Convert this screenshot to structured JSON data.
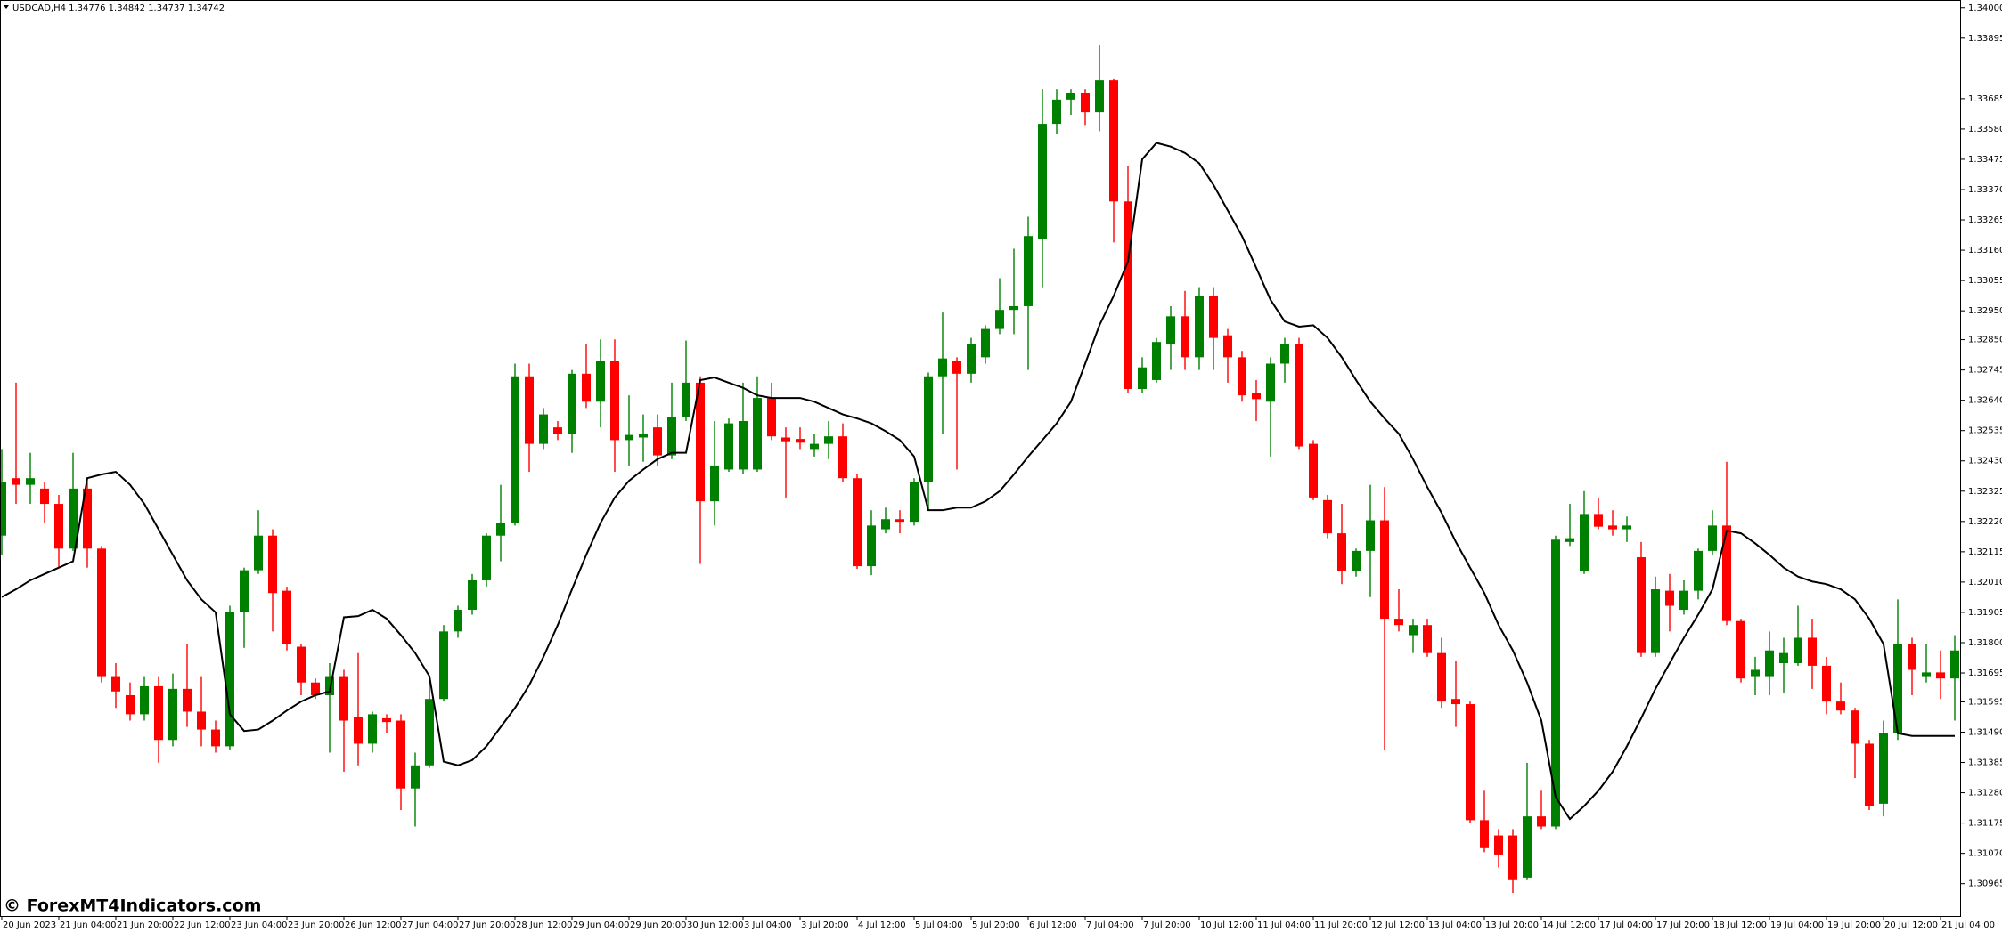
{
  "chart_data": {
    "type": "candlestick",
    "title": "USDCAD,H4 1.34776 1.34842 1.34737 1.34742",
    "watermark": "© ForexMT4Indicators.com",
    "up_color": "#008000",
    "down_color": "#ff0000",
    "categories": [
      "20 Jun 2023",
      null,
      null,
      null,
      "21 Jun 04:00",
      null,
      null,
      null,
      "21 Jun 20:00",
      null,
      null,
      null,
      "22 Jun 12:00",
      null,
      null,
      null,
      "23 Jun 04:00",
      null,
      null,
      null,
      "23 Jun 20:00",
      null,
      null,
      null,
      "26 Jun 12:00",
      null,
      null,
      null,
      "27 Jun 04:00",
      null,
      null,
      null,
      "27 Jun 20:00",
      null,
      null,
      null,
      "28 Jun 12:00",
      null,
      null,
      null,
      "29 Jun 04:00",
      null,
      null,
      null,
      "29 Jun 20:00",
      null,
      null,
      null,
      "30 Jun 12:00",
      null,
      null,
      null,
      "3 Jul 04:00",
      null,
      null,
      null,
      "3 Jul 20:00",
      null,
      null,
      null,
      "4 Jul 12:00",
      null,
      null,
      null,
      "5 Jul 04:00",
      null,
      null,
      null,
      "5 Jul 20:00",
      null,
      null,
      null,
      "6 Jul 12:00",
      null,
      null,
      null,
      "7 Jul 04:00",
      null,
      null,
      null,
      "7 Jul 20:00",
      null,
      null,
      null,
      "10 Jul 12:00",
      null,
      null,
      null,
      "11 Jul 04:00",
      null,
      null,
      null,
      "11 Jul 20:00",
      null,
      null,
      null,
      "12 Jul 12:00",
      null,
      null,
      null,
      "13 Jul 04:00",
      null,
      null,
      null,
      "13 Jul 20:00",
      null,
      null,
      null,
      "14 Jul 12:00",
      null,
      null,
      null,
      "17 Jul 04:00",
      null,
      null,
      null,
      "17 Jul 20:00",
      null,
      null,
      null,
      "18 Jul 12:00",
      null,
      null,
      null,
      "19 Jul 04:00",
      null,
      null,
      null,
      "19 Jul 20:00",
      null,
      null,
      null,
      "20 Jul 12:00",
      null,
      null,
      null,
      "21 Jul 04:00",
      null
    ],
    "open": [
      1.32171,
      1.3237,
      1.32347,
      1.32334,
      1.32281,
      1.32126,
      1.32334,
      1.32126,
      1.31684,
      1.31618,
      1.31552,
      1.31649,
      1.31463,
      1.3164,
      1.31561,
      1.31499,
      1.31441,
      1.31905,
      1.32051,
      1.32171,
      1.3198,
      1.31786,
      1.31662,
      1.31618,
      1.31684,
      1.31543,
      1.3145,
      1.31538,
      1.3153,
      1.31295,
      1.31375,
      1.31605,
      1.31839,
      1.31914,
      1.32016,
      1.32171,
      1.32215,
      1.32723,
      1.32489,
      1.32546,
      1.32524,
      1.32732,
      1.32635,
      1.32776,
      1.32502,
      1.32511,
      1.32546,
      1.32449,
      1.32582,
      1.32701,
      1.3229,
      1.324,
      1.324,
      1.324,
      1.32648,
      1.32511,
      1.32506,
      1.32471,
      1.32489,
      1.32515,
      1.3237,
      1.32065,
      1.32193,
      1.32228,
      1.32219,
      1.32356,
      1.32723,
      1.32776,
      1.32732,
      1.32789,
      1.32887,
      1.32953,
      1.32966,
      1.332,
      1.33598,
      1.33682,
      1.33704,
      1.33638,
      1.33749,
      1.33329,
      1.32679,
      1.3271,
      1.32834,
      1.32931,
      1.32789,
      1.33002,
      1.32865,
      1.32789,
      1.32666,
      1.32635,
      1.32767,
      1.32834,
      1.32489,
      1.32294,
      1.32179,
      1.32047,
      1.32118,
      1.32224,
      1.31883,
      1.31826,
      1.31861,
      1.31764,
      1.31605,
      1.31587,
      1.31185,
      1.31132,
      1.31132,
      1.30986,
      1.31198,
      1.31163,
      1.32149,
      1.32047,
      1.32246,
      1.32206,
      1.32193,
      1.32096,
      1.31764,
      1.3198,
      1.31914,
      1.3198,
      1.32118,
      1.32206,
      1.31875,
      1.31684,
      1.31684,
      1.31729,
      1.31729,
      1.31817,
      1.3172,
      1.31596,
      1.31565,
      1.3145,
      1.31242,
      1.31486,
      1.31795,
      1.31684,
      1.31697,
      1.31676
    ],
    "high": [
      1.32471,
      1.32701,
      1.32458,
      1.32356,
      1.32312,
      1.32458,
      1.32356,
      1.32135,
      1.31729,
      1.31662,
      1.31684,
      1.31684,
      1.31693,
      1.31795,
      1.31684,
      1.3153,
      1.31928,
      1.3206,
      1.32259,
      1.32193,
      1.31994,
      1.31795,
      1.31676,
      1.31729,
      1.31706,
      1.31764,
      1.31561,
      1.31552,
      1.31552,
      1.31419,
      1.31684,
      1.31861,
      1.31928,
      1.32038,
      1.32179,
      1.32347,
      1.32767,
      1.32767,
      1.32613,
      1.32568,
      1.32745,
      1.32834,
      1.32851,
      1.32851,
      1.32657,
      1.32591,
      1.32591,
      1.32701,
      1.32847,
      1.32723,
      1.32568,
      1.32577,
      1.32701,
      1.32723,
      1.32701,
      1.32546,
      1.32546,
      1.32524,
      1.32568,
      1.3256,
      1.32383,
      1.32259,
      1.32268,
      1.32259,
      1.3237,
      1.32736,
      1.32944,
      1.32789,
      1.32856,
      1.329,
      1.33063,
      1.33165,
      1.33276,
      1.33718,
      1.33718,
      1.33718,
      1.33718,
      1.33872,
      1.33753,
      1.33452,
      1.32789,
      1.32856,
      1.32966,
      1.33019,
      1.33032,
      1.33032,
      1.32887,
      1.32811,
      1.3271,
      1.32789,
      1.32856,
      1.32856,
      1.32502,
      1.32312,
      1.32281,
      1.32126,
      1.32347,
      1.32339,
      1.31985,
      1.31883,
      1.31883,
      1.31817,
      1.31737,
      1.31596,
      1.31287,
      1.31154,
      1.31154,
      1.31384,
      1.31287,
      1.32171,
      1.32281,
      1.32325,
      1.32303,
      1.32259,
      1.32237,
      1.32149,
      1.32029,
      1.32038,
      1.32016,
      1.32126,
      1.32259,
      1.32427,
      1.31883,
      1.31751,
      1.31839,
      1.31817,
      1.31928,
      1.31883,
      1.31751,
      1.31662,
      1.31574,
      1.31463,
      1.3153,
      1.3195,
      1.31817,
      1.31795,
      1.31773,
      1.31826
    ],
    "low": [
      1.32104,
      1.32281,
      1.32281,
      1.32215,
      1.3206,
      1.32118,
      1.3206,
      1.31662,
      1.31574,
      1.3153,
      1.3153,
      1.31384,
      1.31441,
      1.31508,
      1.31441,
      1.31419,
      1.31428,
      1.31782,
      1.32038,
      1.31839,
      1.31773,
      1.31618,
      1.31605,
      1.31419,
      1.31353,
      1.31375,
      1.31419,
      1.31486,
      1.3122,
      1.31163,
      1.31366,
      1.31596,
      1.31817,
      1.31897,
      1.31994,
      1.32082,
      1.32206,
      1.32392,
      1.32471,
      1.32502,
      1.32458,
      1.32613,
      1.32546,
      1.32392,
      1.32414,
      1.32427,
      1.32414,
      1.32436,
      1.32568,
      1.32073,
      1.32206,
      1.32392,
      1.32383,
      1.32392,
      1.32502,
      1.32303,
      1.32471,
      1.32445,
      1.32436,
      1.32356,
      1.32056,
      1.32034,
      1.32179,
      1.32179,
      1.32206,
      1.32259,
      1.32524,
      1.324,
      1.32701,
      1.32767,
      1.32869,
      1.32869,
      1.32745,
      1.33032,
      1.33563,
      1.33629,
      1.33594,
      1.33572,
      1.33187,
      1.32666,
      1.32666,
      1.32701,
      1.32745,
      1.32745,
      1.32745,
      1.32745,
      1.32701,
      1.32635,
      1.32568,
      1.32445,
      1.32701,
      1.32471,
      1.32294,
      1.32162,
      1.32003,
      1.32029,
      1.31958,
      1.31428,
      1.31839,
      1.31764,
      1.31751,
      1.31574,
      1.31508,
      1.31176,
      1.31074,
      1.31021,
      1.30933,
      1.30977,
      1.31154,
      1.31154,
      1.32135,
      1.32038,
      1.32193,
      1.32171,
      1.32149,
      1.31751,
      1.31751,
      1.31839,
      1.31897,
      1.3195,
      1.32104,
      1.31861,
      1.31662,
      1.31618,
      1.31618,
      1.31627,
      1.3172,
      1.3164,
      1.31552,
      1.31552,
      1.31331,
      1.3122,
      1.31198,
      1.31463,
      1.31618,
      1.31662,
      1.31605,
      1.3153
    ],
    "close": [
      1.32356,
      1.32347,
      1.3237,
      1.32281,
      1.32126,
      1.32334,
      1.32126,
      1.31684,
      1.31631,
      1.31552,
      1.31649,
      1.31463,
      1.3164,
      1.31561,
      1.31499,
      1.31441,
      1.31905,
      1.32051,
      1.32171,
      1.31972,
      1.31795,
      1.31662,
      1.31618,
      1.31684,
      1.3153,
      1.3145,
      1.31552,
      1.31525,
      1.31295,
      1.31375,
      1.31605,
      1.31839,
      1.31914,
      1.32016,
      1.32171,
      1.32215,
      1.32723,
      1.32489,
      1.32591,
      1.32524,
      1.32732,
      1.32635,
      1.32776,
      1.32502,
      1.3252,
      1.32524,
      1.32449,
      1.32582,
      1.32701,
      1.3229,
      1.32414,
      1.3256,
      1.32568,
      1.32648,
      1.32515,
      1.32498,
      1.32493,
      1.32489,
      1.32515,
      1.3237,
      1.32065,
      1.32206,
      1.32228,
      1.32219,
      1.32356,
      1.32723,
      1.32785,
      1.32732,
      1.32834,
      1.32887,
      1.32953,
      1.32966,
      1.33209,
      1.33598,
      1.33682,
      1.33704,
      1.33638,
      1.33749,
      1.33329,
      1.32679,
      1.32754,
      1.32842,
      1.32931,
      1.32789,
      1.33002,
      1.32856,
      1.32789,
      1.32657,
      1.32644,
      1.32767,
      1.32834,
      1.3248,
      1.32303,
      1.32179,
      1.32047,
      1.32118,
      1.32224,
      1.31883,
      1.31861,
      1.31861,
      1.31764,
      1.31596,
      1.31587,
      1.31185,
      1.31088,
      1.31066,
      1.30977,
      1.31198,
      1.31163,
      1.32157,
      1.32162,
      1.32246,
      1.32202,
      1.32193,
      1.32206,
      1.31764,
      1.31985,
      1.31928,
      1.3198,
      1.32118,
      1.32206,
      1.31875,
      1.31676,
      1.31706,
      1.31773,
      1.31764,
      1.31817,
      1.3172,
      1.31596,
      1.31565,
      1.3145,
      1.31234,
      1.31486,
      1.31795,
      1.31706,
      1.31697,
      1.31676,
      1.31773
    ],
    "line": {
      "color": "#000000",
      "values": [
        1.31958,
        1.31985,
        1.32016,
        1.32038,
        1.3206,
        1.32082,
        1.3237,
        1.32383,
        1.32392,
        1.32347,
        1.32281,
        1.32193,
        1.32104,
        1.32016,
        1.3195,
        1.31905,
        1.31552,
        1.31494,
        1.31499,
        1.3153,
        1.31565,
        1.31596,
        1.31618,
        1.31631,
        1.31888,
        1.31892,
        1.31914,
        1.31883,
        1.31826,
        1.31764,
        1.31684,
        1.31388,
        1.31375,
        1.31393,
        1.31441,
        1.31508,
        1.31574,
        1.31653,
        1.31751,
        1.31861,
        1.31985,
        1.32104,
        1.32215,
        1.32303,
        1.32361,
        1.324,
        1.32436,
        1.32458,
        1.32458,
        1.3271,
        1.32719,
        1.32701,
        1.32683,
        1.32657,
        1.32648,
        1.32648,
        1.32648,
        1.32635,
        1.32613,
        1.32591,
        1.32577,
        1.3256,
        1.32533,
        1.32502,
        1.32445,
        1.32259,
        1.32259,
        1.32268,
        1.32268,
        1.3229,
        1.32325,
        1.32383,
        1.32445,
        1.32502,
        1.3256,
        1.32635,
        1.32767,
        1.329,
        1.33002,
        1.33121,
        1.33475,
        1.33532,
        1.33519,
        1.33497,
        1.33461,
        1.33386,
        1.33298,
        1.33209,
        1.33099,
        1.32988,
        1.32913,
        1.32895,
        1.329,
        1.32856,
        1.32789,
        1.3271,
        1.32635,
        1.32577,
        1.32524,
        1.32436,
        1.32339,
        1.3225,
        1.32149,
        1.3206,
        1.31972,
        1.31861,
        1.31773,
        1.31662,
        1.3153,
        1.31265,
        1.31189,
        1.31234,
        1.31287,
        1.31353,
        1.31441,
        1.31538,
        1.3164,
        1.31729,
        1.31817,
        1.31897,
        1.31985,
        1.32188,
        1.32179,
        1.32144,
        1.32104,
        1.3206,
        1.32029,
        1.32012,
        1.32003,
        1.31985,
        1.3195,
        1.31883,
        1.31795,
        1.31486,
        1.31477,
        1.31477,
        1.31477,
        1.31477
      ]
    },
    "ylim": [
      1.30853,
      1.34027
    ],
    "yticks": [
      {
        "value": 1.34,
        "label": "1.34000"
      },
      1.33895,
      1.33685,
      {
        "value": 1.3358,
        "label": "1.33580"
      },
      1.33475,
      {
        "value": 1.3337,
        "label": "1.33370"
      },
      1.33265,
      {
        "value": 1.3316,
        "label": "1.33160"
      },
      1.33055,
      {
        "value": 1.3295,
        "label": "1.32950"
      },
      {
        "value": 1.3285,
        "label": "1.32850"
      },
      1.32745,
      {
        "value": 1.3264,
        "label": "1.32640"
      },
      1.32535,
      {
        "value": 1.3243,
        "label": "1.32430"
      },
      1.32325,
      {
        "value": 1.3222,
        "label": "1.32220"
      },
      1.32115,
      {
        "value": 1.3201,
        "label": "1.32010"
      },
      1.31905,
      {
        "value": 1.318,
        "label": "1.31800"
      },
      1.31695,
      1.31595,
      {
        "value": 1.3149,
        "label": "1.31490"
      },
      1.31385,
      {
        "value": 1.3128,
        "label": "1.31280"
      },
      1.31175,
      {
        "value": 1.3107,
        "label": "1.31070"
      },
      1.30965
    ]
  }
}
